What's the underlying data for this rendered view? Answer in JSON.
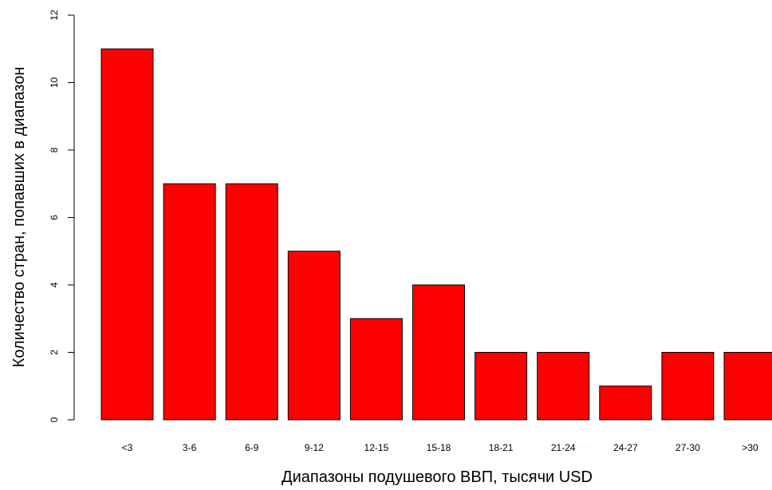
{
  "chart_data": {
    "type": "bar",
    "categories": [
      "<3",
      "3-6",
      "6-9",
      "9-12",
      "12-15",
      "15-18",
      "18-21",
      "21-24",
      "24-27",
      "27-30",
      ">30"
    ],
    "values": [
      11,
      7,
      7,
      5,
      3,
      4,
      2,
      2,
      1,
      2,
      2
    ],
    "title": "",
    "xlabel": "Диапазоны подушевого ВВП, тысячи USD",
    "ylabel": "Количество стран, попавших в диапазон",
    "ylim": [
      0,
      12
    ],
    "yticks": [
      0,
      2,
      4,
      6,
      8,
      10,
      12
    ],
    "bar_color": "#ff0000",
    "bar_border_color": "#000000",
    "grid": false,
    "legend": "none"
  }
}
